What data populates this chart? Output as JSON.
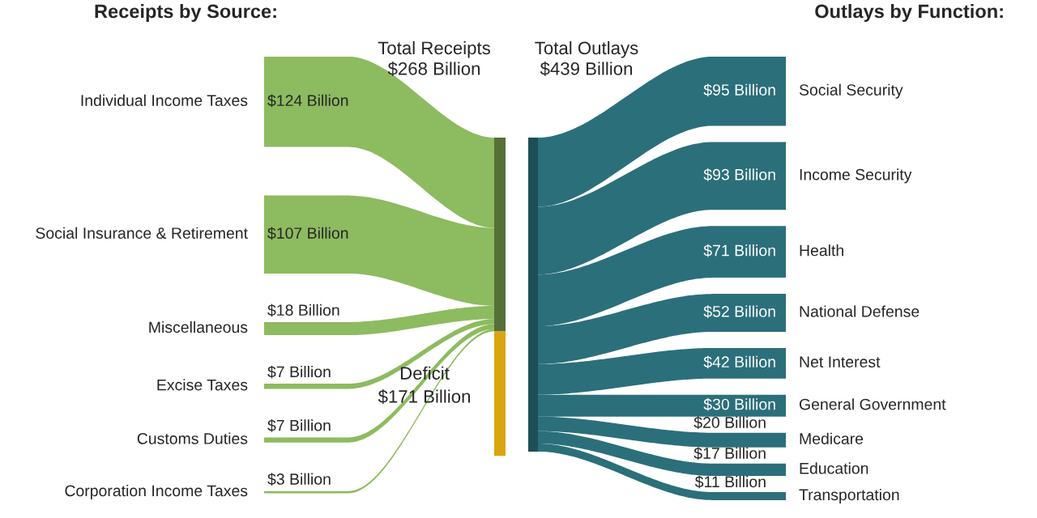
{
  "chart_data": {
    "type": "other",
    "categories": [
      "Individual Income Taxes",
      "Social Insurance & Retirement",
      "Miscellaneous",
      "Excise Taxes",
      "Customs Duties",
      "Corporation Income Taxes",
      "Deficit",
      "Social Security",
      "Income Security",
      "Health",
      "National Defense",
      "Net Interest",
      "General Government",
      "Medicare",
      "Education",
      "Transportation"
    ],
    "series": [
      {
        "name": "Receipts by Source:",
        "color": "#8dbb5f",
        "values": [
          124,
          107,
          18,
          7,
          7,
          3,
          null,
          null,
          null,
          null,
          null,
          null,
          null,
          null,
          null,
          null
        ],
        "value_labels": [
          "$124 Billion",
          "$107 Billion",
          "$18 Billion",
          "$7 Billion",
          "$7 Billion",
          "$3 Billion",
          null,
          null,
          null,
          null,
          null,
          null,
          null,
          null,
          null,
          null
        ]
      },
      {
        "color": "#d9a60f",
        "values": [
          null,
          null,
          null,
          null,
          null,
          null,
          171,
          null,
          null,
          null,
          null,
          null,
          null,
          null,
          null,
          null
        ],
        "value_labels": [
          null,
          null,
          null,
          null,
          null,
          null,
          "$171 Billion",
          null,
          null,
          null,
          null,
          null,
          null,
          null,
          null,
          null
        ]
      },
      {
        "name": "Outlays by Function:",
        "color": "#2b6f7b",
        "values": [
          null,
          null,
          null,
          null,
          null,
          null,
          null,
          95,
          93,
          71,
          52,
          42,
          30,
          20,
          17,
          11
        ],
        "value_labels": [
          null,
          null,
          null,
          null,
          null,
          null,
          null,
          "$95 Billion",
          "$93 Billion",
          "$71 Billion",
          "$52 Billion",
          "$42 Billion",
          "$30 Billion",
          "$20 Billion",
          "$17 Billion",
          "$11 Billion"
        ]
      }
    ],
    "annotations": [
      "Total Receipts\n$268 Billion",
      "Total Outlays\n$439 Billion"
    ]
  }
}
